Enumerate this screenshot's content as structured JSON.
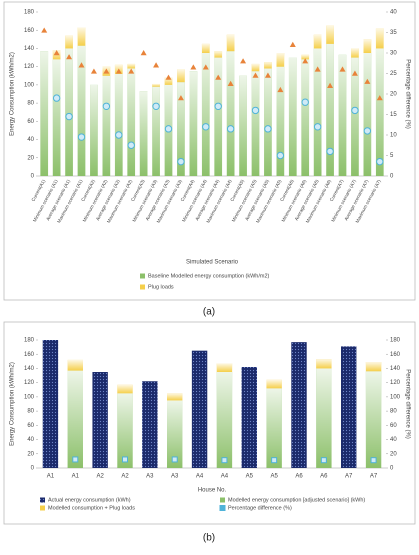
{
  "chart_data": [
    {
      "type": "bar",
      "caption": "(a)",
      "y_label": "Energy Consumption (kWh/m2)",
      "y2_label": "Percentage difference (%)",
      "x_label": "Simulated Scenario",
      "categories": [
        "Current(A1)",
        "Minimum scenario (A1)",
        "Average scenario (A1)",
        "Maximum scenario (A1)",
        "Current(A2)",
        "Minimum scenario (A2)",
        "Average scenario (A2)",
        "Maximum scenario (A2)",
        "Current(A3)",
        "Minimum scenario (A3)",
        "Average scenario (A3)",
        "Maximum scenario (A3)",
        "Current(A4)",
        "Minimum scenario (A4)",
        "Average scenario (A4)",
        "Maximum scenario (A4)",
        "Current(A5)",
        "Minimum scenario (A5)",
        "Average scenario (A5)",
        "Maximum scenario (A5)",
        "Current(A6)",
        "Minimum scenario (A6)",
        "Average scenario (A6)",
        "Maximum scenario (A6)",
        "Current(A7)",
        "Minimum scenario (A7)",
        "Average scenario (A7)",
        "Maximum scenario (A7)"
      ],
      "ylim": [
        0,
        180
      ],
      "yticks": [
        0,
        20,
        40,
        60,
        80,
        100,
        120,
        140,
        160,
        180
      ],
      "y2lim": [
        0,
        40
      ],
      "y2ticks": [
        0,
        5,
        10,
        15,
        20,
        25,
        30,
        35,
        40
      ],
      "series": [
        {
          "name": "Baseline Modelled energy consumption (kWh/m2)",
          "color": "#8cc06a",
          "marker": "bar",
          "values": [
            137,
            128,
            140,
            143,
            100,
            110,
            112,
            118,
            93,
            98,
            100,
            103,
            115,
            135,
            130,
            137,
            110,
            115,
            118,
            120,
            130,
            128,
            140,
            145,
            133,
            130,
            135,
            140
          ]
        },
        {
          "name": "Plug loads",
          "color": "#f5cf4a",
          "marker": "bar",
          "values": [
            0,
            10,
            14,
            20,
            0,
            10,
            10,
            5,
            0,
            3,
            8,
            14,
            0,
            10,
            7,
            18,
            0,
            8,
            7,
            15,
            0,
            5,
            15,
            20,
            0,
            10,
            15,
            22
          ]
        },
        {
          "color": "#e8833a",
          "marker": "triangle",
          "axis": "y2",
          "values": [
            35.5,
            30,
            29,
            27,
            25.5,
            25.5,
            25.5,
            25.5,
            30,
            27,
            24,
            19,
            26.5,
            26.5,
            24,
            22.5,
            28,
            24.5,
            24.5,
            21,
            32,
            28,
            26,
            22,
            26,
            25,
            23,
            19
          ]
        },
        {
          "color": "#4fb3d9",
          "marker": "circle",
          "axis": "y2",
          "values": [
            null,
            19,
            14.5,
            9.5,
            null,
            17,
            10,
            7.5,
            null,
            17,
            11.5,
            3.5,
            null,
            12,
            17,
            11.5,
            null,
            16,
            11.5,
            5,
            null,
            18,
            12,
            6,
            null,
            16,
            11,
            3.5
          ]
        }
      ]
    },
    {
      "type": "bar",
      "caption": "(b)",
      "y_label": "Energy Consumption (kWh/m2)",
      "y2_label": "Percentage difference (%)",
      "x_label": "House No.",
      "categories": [
        "A1",
        "A1",
        "A2",
        "A2",
        "A3",
        "A3",
        "A4",
        "A4",
        "A5",
        "A5",
        "A6",
        "A6",
        "A7",
        "A7"
      ],
      "ylim": [
        0,
        180
      ],
      "yticks": [
        0,
        20,
        40,
        60,
        80,
        100,
        120,
        140,
        160,
        180
      ],
      "y2lim": [
        0,
        180
      ],
      "y2ticks": [
        0,
        20,
        40,
        60,
        80,
        100,
        120,
        140,
        160,
        180
      ],
      "series": [
        {
          "name": "Actual energy consumption (kWh)",
          "color": "#1b2a6b",
          "marker": "bar",
          "values": [
            180,
            null,
            135,
            null,
            122,
            null,
            165,
            null,
            142,
            null,
            177,
            null,
            171,
            null
          ]
        },
        {
          "name": "Modelled energy consumption [adjusted scenario] (kWh)",
          "color": "#8cc06a",
          "marker": "bar",
          "values": [
            null,
            137,
            null,
            105,
            null,
            95,
            null,
            135,
            null,
            112,
            null,
            140,
            null,
            136
          ]
        },
        {
          "name": "Modelled consumption + Plug loads",
          "color": "#f5cf4a",
          "marker": "bar",
          "values": [
            null,
            15,
            null,
            12,
            null,
            10,
            null,
            12,
            null,
            12,
            null,
            13,
            null,
            13
          ]
        },
        {
          "name": "Percentage difference (%)",
          "color": "#4fb3d9",
          "marker": "square",
          "axis": "y2",
          "values": [
            null,
            12,
            null,
            12,
            null,
            12,
            null,
            11,
            null,
            11,
            null,
            11,
            null,
            11
          ]
        }
      ]
    }
  ]
}
